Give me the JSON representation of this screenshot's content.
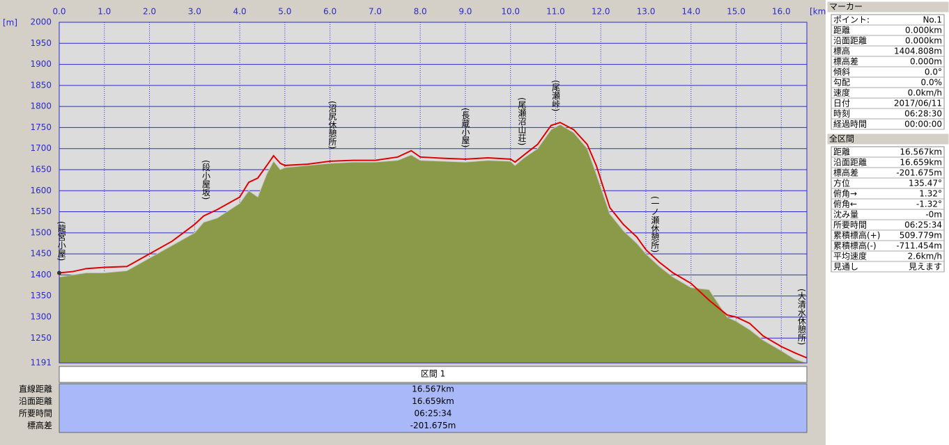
{
  "chart_data": {
    "type": "line",
    "x_unit": "[km]",
    "y_unit": "[m]",
    "xlim": [
      0,
      16.567
    ],
    "ylim": [
      1191,
      2000
    ],
    "xticks": [
      {
        "value": 0,
        "label": "0.0"
      },
      {
        "value": 1,
        "label": "1.0"
      },
      {
        "value": 2,
        "label": "2.0"
      },
      {
        "value": 3,
        "label": "3.0"
      },
      {
        "value": 4,
        "label": "4.0"
      },
      {
        "value": 5,
        "label": "5.0"
      },
      {
        "value": 6,
        "label": "6.0"
      },
      {
        "value": 7,
        "label": "7.0"
      },
      {
        "value": 8,
        "label": "8.0"
      },
      {
        "value": 9,
        "label": "9.0"
      },
      {
        "value": 10,
        "label": "10.0"
      },
      {
        "value": 11,
        "label": "11.0"
      },
      {
        "value": 12,
        "label": "12.0"
      },
      {
        "value": 13,
        "label": "13.0"
      },
      {
        "value": 14,
        "label": "14.0"
      },
      {
        "value": 15,
        "label": "15.0"
      },
      {
        "value": 16,
        "label": "16.0"
      }
    ],
    "yticks": [
      1191,
      1250,
      1300,
      1350,
      1400,
      1450,
      1500,
      1550,
      1600,
      1650,
      1700,
      1750,
      1800,
      1850,
      1900,
      1950,
      2000
    ],
    "grid": true,
    "x": [
      0,
      0.3,
      0.6,
      1.0,
      1.5,
      2.0,
      2.5,
      3.0,
      3.2,
      3.5,
      4.0,
      4.2,
      4.4,
      4.6,
      4.75,
      4.9,
      5.0,
      5.5,
      6.0,
      6.5,
      7.0,
      7.5,
      7.8,
      8.0,
      8.5,
      9.0,
      9.5,
      10.0,
      10.1,
      10.3,
      10.6,
      10.9,
      11.1,
      11.4,
      11.7,
      11.9,
      12.2,
      12.5,
      12.8,
      13.0,
      13.3,
      13.6,
      14.0,
      14.4,
      14.8,
      15.0,
      15.3,
      15.6,
      16.0,
      16.3,
      16.567
    ],
    "series": [
      {
        "color": "#8a9a48",
        "fill": true,
        "values": [
          1395,
          1400,
          1405,
          1405,
          1410,
          1440,
          1470,
          1500,
          1525,
          1535,
          1570,
          1600,
          1585,
          1640,
          1670,
          1650,
          1655,
          1660,
          1665,
          1668,
          1668,
          1672,
          1685,
          1672,
          1670,
          1668,
          1672,
          1670,
          1660,
          1678,
          1700,
          1745,
          1757,
          1738,
          1700,
          1640,
          1545,
          1505,
          1475,
          1450,
          1420,
          1395,
          1370,
          1365,
          1300,
          1290,
          1270,
          1245,
          1220,
          1200,
          1191
        ]
      },
      {
        "color": "#e00000",
        "fill": false,
        "values": [
          1404.8,
          1408,
          1415,
          1418,
          1420,
          1450,
          1480,
          1520,
          1540,
          1555,
          1585,
          1620,
          1630,
          1660,
          1683,
          1665,
          1660,
          1663,
          1670,
          1672,
          1672,
          1680,
          1695,
          1680,
          1677,
          1675,
          1678,
          1675,
          1668,
          1685,
          1710,
          1755,
          1762,
          1745,
          1710,
          1660,
          1560,
          1520,
          1490,
          1460,
          1430,
          1405,
          1380,
          1340,
          1305,
          1300,
          1285,
          1255,
          1230,
          1215,
          1203.1
        ]
      }
    ],
    "annotations": [
      {
        "text": "(龍宮小屋)",
        "x": 0.05
      },
      {
        "text": "(段小屋坂)",
        "x": 3.25
      },
      {
        "text": "(沼尻休憩所)",
        "x": 6.05
      },
      {
        "text": "(長蔵小屋)",
        "x": 9.0
      },
      {
        "text": "(尾瀬沼山荘)",
        "x": 10.25
      },
      {
        "text": "(尾瀬峠)",
        "x": 11.0
      },
      {
        "text": "(一ノ瀬休憩所)",
        "x": 13.2
      },
      {
        "text": "(大清水休憩所)",
        "x": 16.45
      }
    ]
  },
  "section_table": {
    "header": "区間 1",
    "rows": [
      [
        "直線距離",
        "16.567km"
      ],
      [
        "沿面距離",
        "16.659km"
      ],
      [
        "所要時間",
        "06:25:34"
      ],
      [
        "標高差",
        "-201.675m"
      ]
    ]
  },
  "marker_panel": {
    "title": "マーカー",
    "rows": [
      [
        "ポイント:",
        "No.1"
      ],
      [
        "距離",
        "0.000km"
      ],
      [
        "沿面距離",
        "0.000km"
      ],
      [
        "標高",
        "1404.808m"
      ],
      [
        "標高差",
        "0.000m"
      ],
      [
        "傾斜",
        "0.0°"
      ],
      [
        "勾配",
        "0.0%"
      ],
      [
        "速度",
        "0.0km/h"
      ],
      [
        "日付",
        "2017/06/11"
      ],
      [
        "時刻",
        "06:28:30"
      ],
      [
        "経過時間",
        "00:00:00"
      ]
    ]
  },
  "total_panel": {
    "title": "全区間",
    "rows": [
      [
        "距離",
        "16.567km"
      ],
      [
        "沿面距離",
        "16.659km"
      ],
      [
        "標高差",
        "-201.675m"
      ],
      [
        "方位",
        "135.47°"
      ],
      [
        "俯角→",
        "1.32°"
      ],
      [
        "俯角←",
        "-1.32°"
      ],
      [
        "沈み量",
        "-0m"
      ],
      [
        "所要時間",
        "06:25:34"
      ],
      [
        "累積標高(+)",
        "509.779m"
      ],
      [
        "累積標高(-)",
        "-711.454m"
      ],
      [
        "平均速度",
        "2.6km/h"
      ],
      [
        "見通し",
        "見えます"
      ]
    ]
  }
}
